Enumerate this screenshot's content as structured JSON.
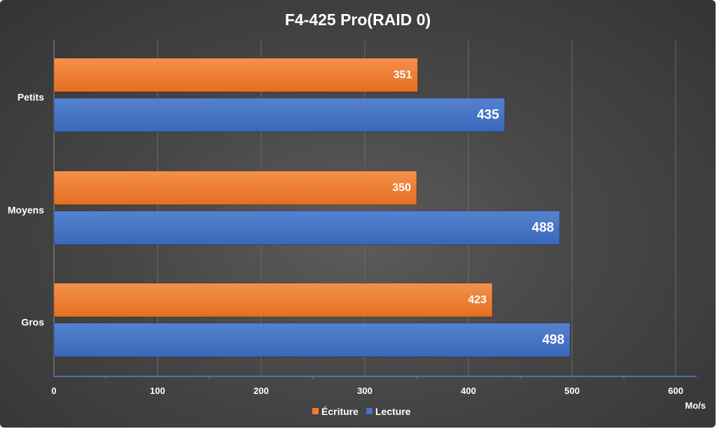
{
  "chart_data": {
    "type": "bar",
    "orientation": "horizontal",
    "title": "F4-425 Pro(RAID 0)",
    "categories": [
      "Petits",
      "Moyens",
      "Gros"
    ],
    "series": [
      {
        "name": "Écriture",
        "color": "#ED7D31",
        "values": [
          351,
          350,
          423
        ]
      },
      {
        "name": "Lecture",
        "color": "#4472C4",
        "values": [
          435,
          488,
          498
        ]
      }
    ],
    "xlim": [
      0,
      620
    ],
    "xticks": [
      0,
      100,
      200,
      300,
      400,
      500,
      600
    ],
    "xunit": "Mo/s",
    "grid": true,
    "legend_position": "bottom"
  }
}
